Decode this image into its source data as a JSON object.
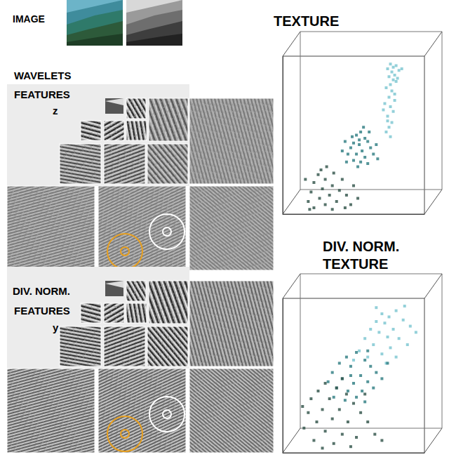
{
  "image_label": "IMAGE",
  "wavelet_label": [
    "WAVELETS",
    "FEATURES",
    "z"
  ],
  "divnorm_label": [
    "DIV. NORM.",
    "FEATURES",
    "y"
  ],
  "chart_data": [
    {
      "type": "scatter",
      "title": "TEXTURE",
      "xlim": [
        0,
        100
      ],
      "ylim": [
        0,
        100
      ],
      "tick_labels": false,
      "marker": "square",
      "series": [
        {
          "color": "#2d5046",
          "values": [
            [
              25,
              25
            ],
            [
              30,
              22
            ],
            [
              22,
              20
            ],
            [
              35,
              18
            ],
            [
              28,
              16
            ],
            [
              20,
              14
            ],
            [
              40,
              15
            ],
            [
              33,
              12
            ],
            [
              26,
              10
            ],
            [
              45,
              12
            ],
            [
              18,
              8
            ],
            [
              38,
              8
            ],
            [
              30,
              6
            ],
            [
              48,
              6
            ],
            [
              22,
              4
            ],
            [
              35,
              3
            ],
            [
              42,
              22
            ],
            [
              16,
              22
            ],
            [
              50,
              18
            ],
            [
              27,
              28
            ],
            [
              36,
              26
            ],
            [
              44,
              4
            ],
            [
              19,
              3
            ],
            [
              53,
              10
            ],
            [
              31,
              30
            ]
          ]
        },
        {
          "color": "#2b7a80",
          "values": [
            [
              52,
              50
            ],
            [
              55,
              52
            ],
            [
              58,
              48
            ],
            [
              50,
              45
            ],
            [
              54,
              44
            ],
            [
              60,
              46
            ],
            [
              48,
              42
            ],
            [
              56,
              40
            ],
            [
              62,
              42
            ],
            [
              52,
              38
            ],
            [
              58,
              36
            ],
            [
              46,
              38
            ],
            [
              64,
              38
            ],
            [
              50,
              34
            ],
            [
              55,
              33
            ],
            [
              60,
              32
            ],
            [
              45,
              33
            ],
            [
              53,
              30
            ],
            [
              66,
              44
            ],
            [
              44,
              46
            ],
            [
              57,
              55
            ],
            [
              61,
              52
            ],
            [
              49,
              49
            ],
            [
              67,
              35
            ],
            [
              42,
              40
            ],
            [
              54,
              47
            ]
          ]
        },
        {
          "color": "#78c4d0",
          "values": [
            [
              76,
              95
            ],
            [
              78,
              93
            ],
            [
              80,
              94
            ],
            [
              74,
              92
            ],
            [
              77,
              90
            ],
            [
              79,
              88
            ],
            [
              82,
              91
            ],
            [
              75,
              87
            ],
            [
              78,
              85
            ],
            [
              80,
              84
            ],
            [
              76,
              82
            ],
            [
              73,
              80
            ],
            [
              77,
              78
            ],
            [
              79,
              76
            ],
            [
              75,
              74
            ],
            [
              72,
              70
            ],
            [
              76,
              68
            ],
            [
              78,
              65
            ],
            [
              74,
              62
            ],
            [
              77,
              58
            ],
            [
              75,
              55
            ],
            [
              73,
              52
            ],
            [
              76,
              49
            ],
            [
              84,
              92
            ],
            [
              81,
              86
            ],
            [
              71,
              66
            ],
            [
              79,
              72
            ],
            [
              74,
              59
            ]
          ]
        }
      ]
    },
    {
      "type": "scatter",
      "title": "DIV. NORM.\nTEXTURE",
      "xlim": [
        0,
        100
      ],
      "ylim": [
        0,
        100
      ],
      "tick_labels": false,
      "marker": "square",
      "series": [
        {
          "color": "#78c4d0",
          "values": [
            [
              70,
              90
            ],
            [
              75,
              88
            ],
            [
              80,
              92
            ],
            [
              66,
              85
            ],
            [
              72,
              84
            ],
            [
              85,
              86
            ],
            [
              78,
              80
            ],
            [
              62,
              80
            ],
            [
              68,
              78
            ],
            [
              90,
              82
            ],
            [
              74,
              75
            ],
            [
              82,
              74
            ],
            [
              58,
              74
            ],
            [
              64,
              70
            ],
            [
              76,
              68
            ],
            [
              88,
              70
            ],
            [
              54,
              66
            ],
            [
              70,
              64
            ],
            [
              60,
              62
            ],
            [
              80,
              62
            ],
            [
              94,
              78
            ],
            [
              66,
              94
            ],
            [
              50,
              60
            ],
            [
              73,
              58
            ],
            [
              86,
              95
            ]
          ]
        },
        {
          "color": "#2b7a80",
          "values": [
            [
              45,
              62
            ],
            [
              52,
              65
            ],
            [
              58,
              60
            ],
            [
              40,
              58
            ],
            [
              48,
              56
            ],
            [
              62,
              56
            ],
            [
              35,
              52
            ],
            [
              55,
              50
            ],
            [
              66,
              52
            ],
            [
              42,
              48
            ],
            [
              50,
              45
            ],
            [
              60,
              46
            ],
            [
              38,
              42
            ],
            [
              46,
              40
            ],
            [
              56,
              40
            ],
            [
              70,
              48
            ],
            [
              32,
              46
            ],
            [
              64,
              42
            ],
            [
              44,
              34
            ],
            [
              52,
              36
            ],
            [
              74,
              58
            ],
            [
              36,
              36
            ],
            [
              60,
              66
            ],
            [
              48,
              50
            ],
            [
              58,
              33
            ]
          ]
        },
        {
          "color": "#2d5046",
          "values": [
            [
              30,
              45
            ],
            [
              38,
              42
            ],
            [
              25,
              40
            ],
            [
              45,
              38
            ],
            [
              20,
              35
            ],
            [
              33,
              35
            ],
            [
              50,
              32
            ],
            [
              28,
              28
            ],
            [
              40,
              28
            ],
            [
              18,
              26
            ],
            [
              55,
              26
            ],
            [
              35,
              22
            ],
            [
              24,
              20
            ],
            [
              46,
              20
            ],
            [
              60,
              20
            ],
            [
              15,
              16
            ],
            [
              30,
              14
            ],
            [
              42,
              12
            ],
            [
              52,
              10
            ],
            [
              22,
              8
            ],
            [
              36,
              6
            ],
            [
              65,
              12
            ],
            [
              28,
              3
            ],
            [
              48,
              4
            ],
            [
              14,
              30
            ],
            [
              58,
              38
            ],
            [
              70,
              8
            ],
            [
              42,
              48
            ]
          ]
        }
      ]
    }
  ]
}
